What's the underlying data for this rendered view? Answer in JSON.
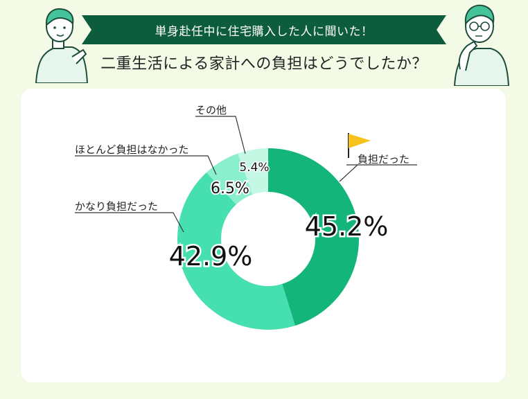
{
  "header": {
    "banner": "単身赴任中に住宅購入した人に聞いた！",
    "question": "二重生活による家計への負担はどうでしたか？"
  },
  "colors": {
    "banner": "#0d5c3e",
    "slice1": "#13b57a",
    "slice2": "#46e0b0",
    "slice3": "#8aefcd",
    "slice4": "#c4f7e4",
    "flag": "#f7c21b"
  },
  "chart_data": {
    "type": "pie",
    "donut": true,
    "categories": [
      "負担だった",
      "かなり負担だった",
      "ほとんど負担はなかった",
      "その他"
    ],
    "values": [
      45.2,
      42.9,
      6.5,
      5.4
    ],
    "value_labels": [
      "45.2%",
      "42.9%",
      "6.5%",
      "5.4%"
    ]
  }
}
